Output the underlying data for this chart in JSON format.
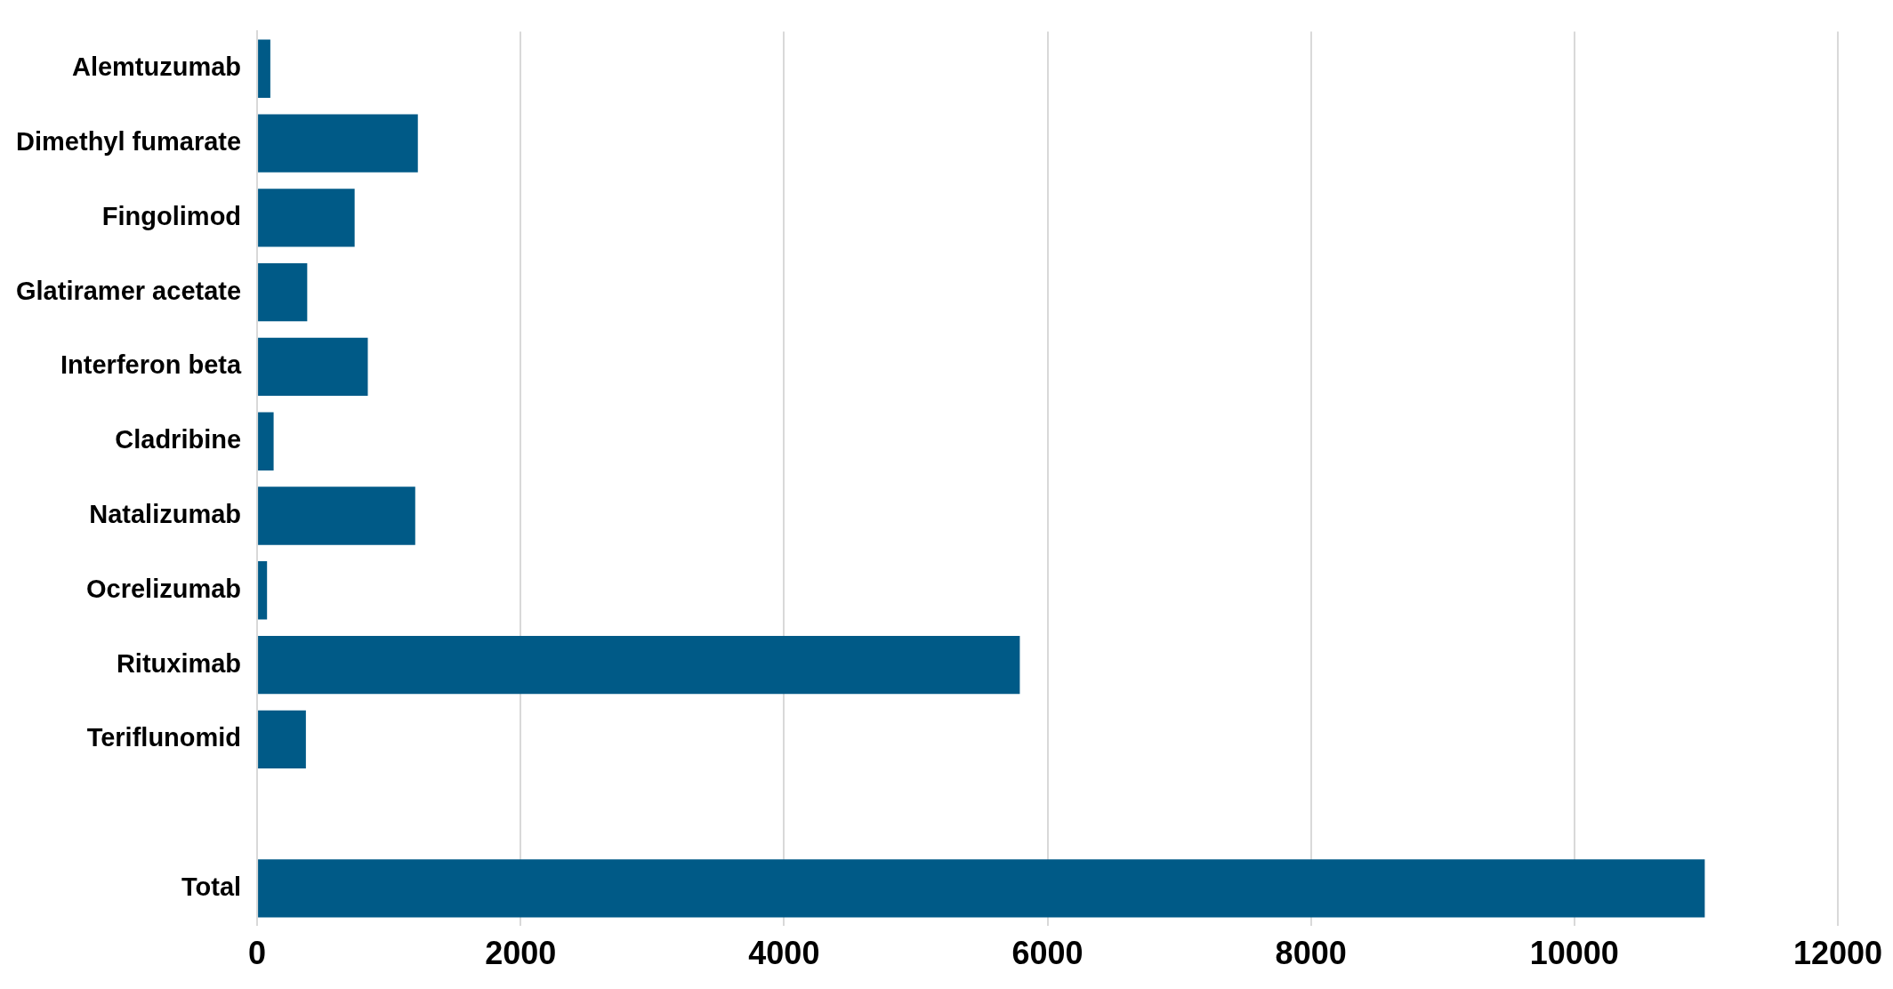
{
  "chart_data": {
    "type": "bar",
    "orientation": "horizontal",
    "categories": [
      "Alemtuzumab",
      "Dimethyl fumarate",
      "Fingolimod",
      "Glatiramer acetate",
      "Interferon beta",
      "Cladribine",
      "Natalizumab",
      "Ocrelizumab",
      "Rituximab",
      "Teriflunomid",
      null,
      "Total"
    ],
    "values": [
      100,
      1220,
      740,
      380,
      840,
      125,
      1200,
      75,
      5790,
      370,
      null,
      10990
    ],
    "color": "#005a87",
    "xlim": [
      0,
      12000
    ],
    "xticks": [
      0,
      2000,
      4000,
      6000,
      8000,
      10000,
      12000
    ],
    "grid": "x",
    "legend": false
  }
}
